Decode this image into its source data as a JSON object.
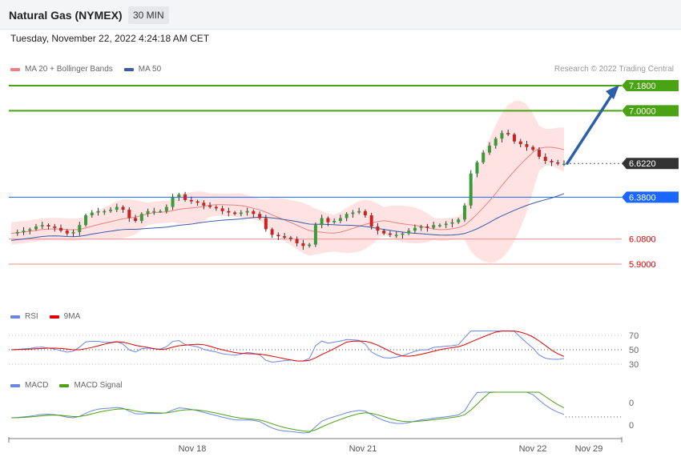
{
  "header": {
    "title": "Natural Gas (NYMEX)",
    "timeframe": "30 MIN"
  },
  "datetime": "Tuesday, November 22, 2022 4:24:18 AM CET",
  "credit": "Research © 2022 Trading Central",
  "colors": {
    "resistance": "#4aa312",
    "support": "#e00000",
    "support_line": "#f4a0a0",
    "pivot": "#1a66ff",
    "current": "#333333",
    "ma20": "#f08080",
    "band_fill": "#ffe3e3",
    "ma50": "#3b5ba9",
    "rsi": "#6a86e0",
    "rsi_ma": "#e00000",
    "macd": "#6a86e0",
    "macd_signal": "#4aa312",
    "arrow": "#2c5fa8",
    "candle_up": "#3a9b3a",
    "candle_down": "#cc2222"
  },
  "legends": {
    "price": [
      {
        "name": "MA 20 + Bollinger Bands",
        "color": "#f08080"
      },
      {
        "name": "MA 50",
        "color": "#3b5ba9"
      }
    ],
    "rsi": [
      {
        "name": "RSI",
        "color": "#6a86e0"
      },
      {
        "name": "9MA",
        "color": "#e00000"
      }
    ],
    "macd": [
      {
        "name": "MACD",
        "color": "#6a86e0"
      },
      {
        "name": "MACD Signal",
        "color": "#4aa312"
      }
    ]
  },
  "chart_data": [
    {
      "type": "candlestick",
      "panel": "price",
      "x_ticks": [
        "Nov 18",
        "Nov 21",
        "Nov 22",
        "Nov 29"
      ],
      "ylim": [
        5.78,
        7.28
      ],
      "levels": [
        {
          "value": 7.18,
          "label": "7.1800",
          "kind": "resistance"
        },
        {
          "value": 7.0,
          "label": "7.0000",
          "kind": "resistance"
        },
        {
          "value": 6.622,
          "label": "6.6220",
          "kind": "current"
        },
        {
          "value": 6.38,
          "label": "6.3800",
          "kind": "pivot"
        },
        {
          "value": 6.08,
          "label": "6.0800",
          "kind": "support"
        },
        {
          "value": 5.9,
          "label": "5.9000",
          "kind": "support"
        }
      ],
      "close_path": [
        6.12,
        6.13,
        6.14,
        6.15,
        6.17,
        6.18,
        6.17,
        6.16,
        6.14,
        6.12,
        6.13,
        6.18,
        6.25,
        6.27,
        6.28,
        6.28,
        6.29,
        6.31,
        6.29,
        6.23,
        6.21,
        6.26,
        6.28,
        6.28,
        6.28,
        6.31,
        6.38,
        6.4,
        6.36,
        6.35,
        6.34,
        6.32,
        6.31,
        6.3,
        6.28,
        6.27,
        6.26,
        6.27,
        6.28,
        6.26,
        6.23,
        6.15,
        6.11,
        6.1,
        6.09,
        6.08,
        6.05,
        6.03,
        6.04,
        6.18,
        6.23,
        6.2,
        6.21,
        6.23,
        6.26,
        6.27,
        6.28,
        6.25,
        6.17,
        6.14,
        6.12,
        6.11,
        6.11,
        6.12,
        6.14,
        6.16,
        6.17,
        6.16,
        6.18,
        6.18,
        6.19,
        6.2,
        6.22,
        6.32,
        6.55,
        6.63,
        6.7,
        6.75,
        6.8,
        6.84,
        6.83,
        6.78,
        6.76,
        6.74,
        6.72,
        6.67,
        6.64,
        6.63,
        6.62,
        6.62
      ],
      "forecast_arrow": {
        "from": 6.622,
        "to": 7.18
      }
    },
    {
      "type": "line",
      "panel": "rsi",
      "y_ticks": [
        "70",
        "50",
        "30"
      ],
      "ylim": [
        30,
        70
      ],
      "series": [
        {
          "name": "RSI"
        },
        {
          "name": "9MA"
        }
      ]
    },
    {
      "type": "line",
      "panel": "macd",
      "y_ticks": [
        "0",
        "0"
      ],
      "series": [
        {
          "name": "MACD"
        },
        {
          "name": "MACD Signal"
        }
      ]
    }
  ]
}
